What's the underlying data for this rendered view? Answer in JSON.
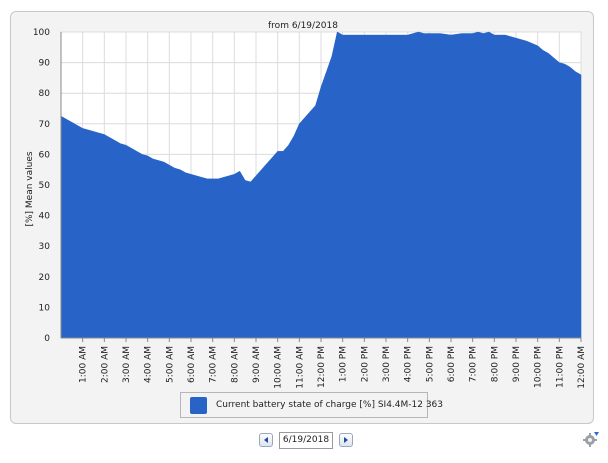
{
  "chart_data": {
    "type": "area",
    "title": "from 6/19/2018",
    "ylabel": "[%] Mean values",
    "xlabel": "",
    "ylim": [
      0,
      100
    ],
    "yticks": [
      0,
      10,
      20,
      30,
      40,
      50,
      60,
      70,
      80,
      90,
      100
    ],
    "xlim": [
      0,
      24
    ],
    "xtick_labels": [
      "1:00 AM",
      "2:00 AM",
      "3:00 AM",
      "4:00 AM",
      "5:00 AM",
      "6:00 AM",
      "7:00 AM",
      "8:00 AM",
      "9:00 AM",
      "10:00 AM",
      "11:00 AM",
      "12:00 PM",
      "1:00 PM",
      "2:00 PM",
      "3:00 PM",
      "4:00 PM",
      "5:00 PM",
      "6:00 PM",
      "7:00 PM",
      "8:00 PM",
      "9:00 PM",
      "10:00 PM",
      "11:00 PM",
      "12:00 AM"
    ],
    "grid": true,
    "legend_position": "bottom-center",
    "series": [
      {
        "name": "Current battery state of charge [%] SI4.4M-12 363",
        "color": "#2863c7",
        "x": [
          0,
          0.25,
          0.5,
          0.75,
          1,
          1.25,
          1.5,
          1.75,
          2,
          2.25,
          2.5,
          2.75,
          3,
          3.25,
          3.5,
          3.75,
          4,
          4.25,
          4.5,
          4.75,
          5,
          5.25,
          5.5,
          5.75,
          6,
          6.25,
          6.5,
          6.75,
          7,
          7.25,
          7.5,
          7.75,
          8,
          8.25,
          8.5,
          8.75,
          9,
          9.25,
          9.5,
          9.75,
          10,
          10.25,
          10.5,
          10.75,
          11,
          11.25,
          11.5,
          11.75,
          12,
          12.25,
          12.5,
          12.75,
          13,
          13.5,
          14,
          14.5,
          15,
          15.5,
          16,
          16.25,
          16.5,
          16.75,
          17,
          17.5,
          18,
          18.5,
          19,
          19.25,
          19.5,
          19.75,
          20,
          20.5,
          21,
          21.5,
          22,
          22.25,
          22.5,
          22.75,
          23,
          23.25,
          23.5,
          23.75,
          24
        ],
        "values": [
          72.5,
          71.5,
          70.5,
          69.5,
          68.5,
          68,
          67.5,
          67,
          66.5,
          65.5,
          64.5,
          63.5,
          63,
          62,
          61,
          60,
          59.5,
          58.5,
          58,
          57.5,
          56.5,
          55.5,
          55,
          54,
          53.5,
          53,
          52.5,
          52,
          52,
          52,
          52.5,
          53,
          53.5,
          54.5,
          51.5,
          51,
          53,
          55,
          57,
          59,
          61,
          61,
          63,
          66,
          70,
          72,
          74,
          76,
          82,
          87,
          92,
          100,
          99,
          99,
          99,
          99,
          99,
          99,
          99,
          99.5,
          100,
          99.5,
          99.5,
          99.5,
          99,
          99.5,
          99.5,
          100,
          99.5,
          100,
          99,
          99,
          98,
          97,
          95.5,
          94,
          93,
          91.5,
          90,
          89.5,
          88.5,
          87,
          86
        ]
      }
    ]
  },
  "controls": {
    "date_value": "6/19/2018"
  },
  "icons": {
    "prev": "chevron-left-icon",
    "next": "chevron-right-icon",
    "corner": "settings-icon"
  }
}
